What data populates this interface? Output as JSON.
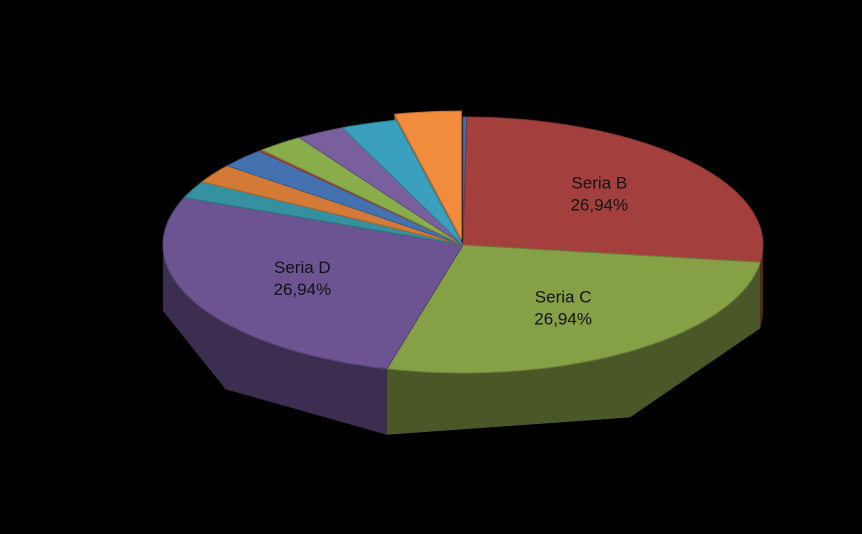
{
  "chart_data": {
    "type": "pie3d",
    "categories": [
      null,
      "Seria B",
      "Seria C",
      "Seria D",
      null,
      null,
      null,
      null,
      null,
      null,
      null,
      null
    ],
    "values": [
      0.2,
      26.94,
      26.94,
      26.94,
      2.2,
      2.4,
      2.5,
      0.2,
      2.5,
      2.6,
      3.0,
      3.58
    ],
    "value_labels": [
      null,
      "26,94%",
      "26,94%",
      "26,94%",
      null,
      null,
      null,
      null,
      null,
      null,
      null,
      null
    ],
    "colors": [
      "#3f6fa8",
      "#a3403e",
      "#86a046",
      "#6c5492",
      "#35909f",
      "#d27a36",
      "#4472b0",
      "#b0403d",
      "#8aad4c",
      "#7a5f9e",
      "#3aa0bd",
      "#f08c3c"
    ],
    "exploded": [
      false,
      false,
      false,
      false,
      false,
      false,
      false,
      false,
      false,
      false,
      false,
      true
    ]
  }
}
